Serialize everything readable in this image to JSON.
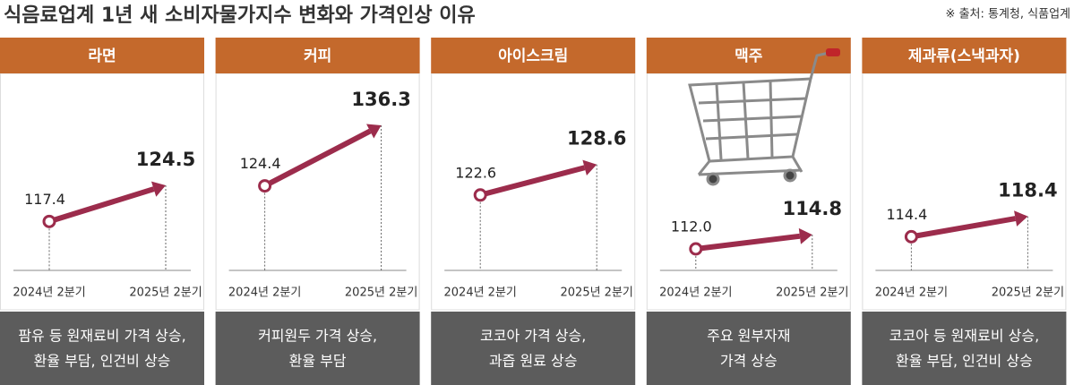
{
  "title": "식음료업계 1년 새 소비자물가지수 변화와 가격인상 이유",
  "source": "※ 출처: 통계청, 식품업계",
  "chart_data": [
    {
      "type": "line",
      "title": "라면",
      "categories": [
        "2024년 2분기",
        "2025년 2분기"
      ],
      "values": [
        117.4,
        124.5
      ],
      "color": "#9c2c4c",
      "note": [
        "팜유 등 원재료비 가격 상승,",
        "환율 부담, 인건비 상승"
      ]
    },
    {
      "type": "line",
      "title": "커피",
      "categories": [
        "2024년 2분기",
        "2025년 2분기"
      ],
      "values": [
        124.4,
        136.3
      ],
      "color": "#9c2c4c",
      "note": [
        "커피원두 가격 상승,",
        "환율 부담"
      ]
    },
    {
      "type": "line",
      "title": "아이스크림",
      "categories": [
        "2024년 2분기",
        "2025년 2분기"
      ],
      "values": [
        122.6,
        128.6
      ],
      "color": "#9c2c4c",
      "note": [
        "코코아 가격 상승,",
        "과즙 원료 상승"
      ]
    },
    {
      "type": "line",
      "title": "맥주",
      "categories": [
        "2024년 2분기",
        "2025년 2분기"
      ],
      "values": [
        112.0,
        114.8
      ],
      "value_labels": [
        "112.0",
        "114.8"
      ],
      "color": "#9c2c4c",
      "note": [
        "주요 원부자재",
        "가격 상승"
      ]
    },
    {
      "type": "line",
      "title": "제과류(스낵과자)",
      "categories": [
        "2024년 2분기",
        "2025년 2분기"
      ],
      "values": [
        114.4,
        118.4
      ],
      "color": "#9c2c4c",
      "note": [
        "코코아 등 원재료비 상승,",
        "환율 부담, 인건비 상승"
      ]
    }
  ]
}
